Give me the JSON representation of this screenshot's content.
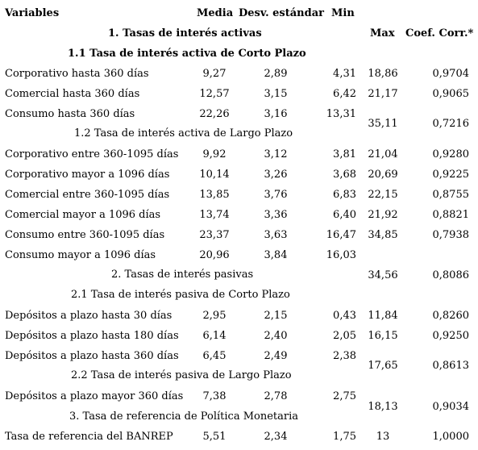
{
  "headers": {
    "variables": "Variables",
    "media": "Media",
    "desv": "Desv. estándar",
    "min": "Min",
    "max": "Max",
    "coef": "Coef. Corr.*"
  },
  "sections": {
    "s1": "1. Tasas de interés activas",
    "s1_1": "1.1 Tasa de interés activa de Corto Plazo",
    "s1_2": "1.2 Tasa de interés activa de Largo Plazo",
    "s2": "2. Tasas de interés pasivas",
    "s2_1": "2.1 Tasa de interés pasiva de Corto Plazo",
    "s2_2": "2.2 Tasa de interés pasiva de Largo Plazo",
    "s3": "3. Tasa de referencia de Política Monetaria"
  },
  "rows": [
    {
      "label": "Corporativo hasta 360 días",
      "media": "9,27",
      "desv": "2,89",
      "min": "4,31",
      "max": "18,86",
      "coef": "0,9704"
    },
    {
      "label": "Comercial hasta 360 días",
      "media": "12,57",
      "desv": "3,15",
      "min": "6,42",
      "max": "21,17",
      "coef": "0,9065"
    },
    {
      "label": "Consumo hasta 360 días",
      "media": "22,26",
      "desv": "3,16",
      "min": "13,31",
      "max": "35,11",
      "coef": "0,7216"
    },
    {
      "label": "Corporativo entre 360-1095 días",
      "media": "9,92",
      "desv": "3,12",
      "min": "3,81",
      "max": "21,04",
      "coef": "0,9280"
    },
    {
      "label": "Corporativo mayor a 1096 días",
      "media": "10,14",
      "desv": "3,26",
      "min": "3,68",
      "max": "20,69",
      "coef": "0,9225"
    },
    {
      "label": "Comercial entre 360-1095 días",
      "media": "13,85",
      "desv": "3,76",
      "min": "6,83",
      "max": "22,15",
      "coef": "0,8755"
    },
    {
      "label": "Comercial mayor a 1096 días",
      "media": "13,74",
      "desv": "3,36",
      "min": "6,40",
      "max": "21,92",
      "coef": "0,8821"
    },
    {
      "label": "Consumo entre 360-1095 días",
      "media": "23,37",
      "desv": "3,63",
      "min": "16,47",
      "max": "34,85",
      "coef": "0,7938"
    },
    {
      "label": "Consumo mayor a 1096 días",
      "media": "20,96",
      "desv": "3,84",
      "min": "16,03",
      "max": "34,56",
      "coef": "0,8086"
    },
    {
      "label": "Depósitos a plazo hasta 30 días",
      "media": "2,95",
      "desv": "2,15",
      "min": "0,43",
      "max": "11,84",
      "coef": "0,8260"
    },
    {
      "label": "Depósitos a plazo hasta 180 días",
      "media": "6,14",
      "desv": "2,40",
      "min": "2,05",
      "max": "16,15",
      "coef": "0,9250"
    },
    {
      "label": "Depósitos a plazo hasta 360 días",
      "media": "6,45",
      "desv": "2,49",
      "min": "2,38",
      "max": "17,65",
      "coef": "0,8613"
    },
    {
      "label": "Depósitos a plazo mayor 360 días",
      "media": "7,38",
      "desv": "2,78",
      "min": "2,75",
      "max": "18,13",
      "coef": "0,9034"
    },
    {
      "label": "Tasa de referencia del BANREP",
      "media": "5,51",
      "desv": "2,34",
      "min": "1,75",
      "max": "13",
      "coef": "1,0000"
    }
  ]
}
